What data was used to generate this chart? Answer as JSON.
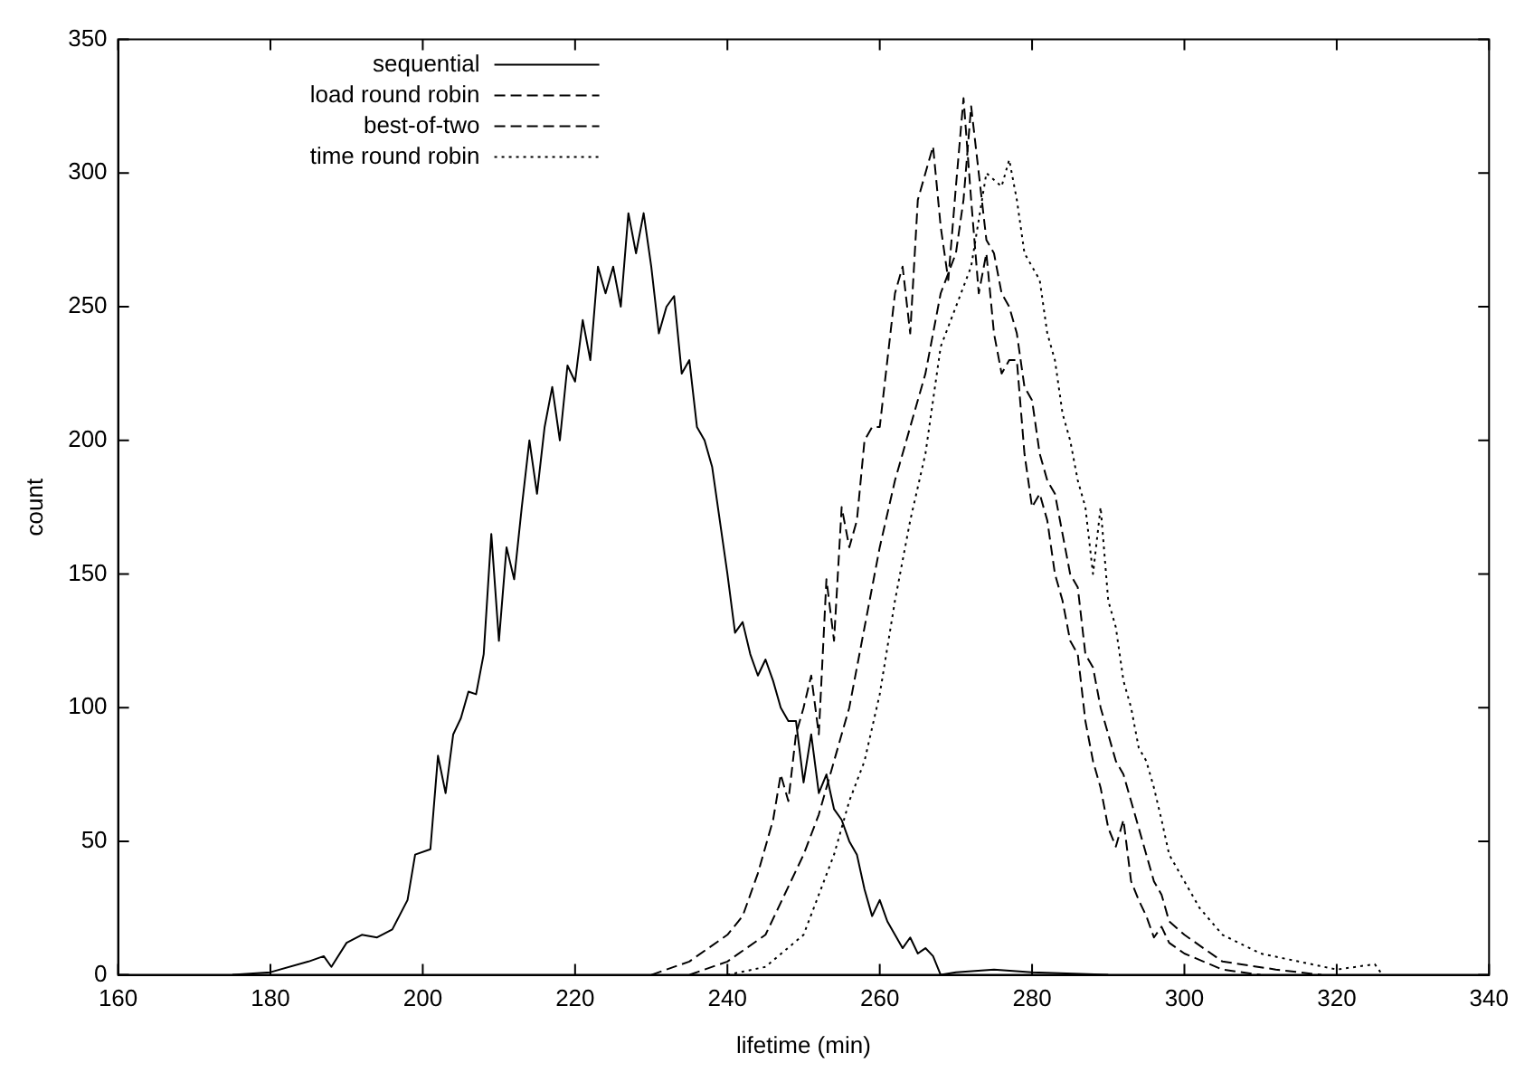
{
  "chart_data": {
    "type": "line",
    "xlabel": "lifetime (min)",
    "ylabel": "count",
    "xlim": [
      160,
      340
    ],
    "xticks": [
      160,
      180,
      200,
      220,
      240,
      260,
      280,
      300,
      320,
      340
    ],
    "ylim": [
      0,
      350
    ],
    "yticks": [
      0,
      50,
      100,
      150,
      200,
      250,
      300,
      350
    ],
    "grid": false,
    "legend": "top left",
    "marker": "none",
    "series": [
      {
        "name": "sequential",
        "color": "#000000",
        "line_style": "solid",
        "x": [
          175,
          180,
          185,
          187,
          188,
          190,
          192,
          194,
          196,
          198,
          199,
          201,
          202,
          203,
          204,
          205,
          206,
          207,
          208,
          209,
          210,
          211,
          212,
          213,
          214,
          215,
          216,
          217,
          218,
          219,
          220,
          221,
          222,
          223,
          224,
          225,
          226,
          227,
          228,
          229,
          230,
          231,
          232,
          233,
          234,
          235,
          236,
          237,
          238,
          239,
          240,
          241,
          242,
          243,
          244,
          245,
          246,
          247,
          248,
          249,
          250,
          251,
          252,
          253,
          254,
          255,
          256,
          257,
          258,
          259,
          260,
          261,
          262,
          263,
          264,
          265,
          266,
          267,
          268,
          270,
          275,
          280,
          290
        ],
        "values": [
          0,
          1,
          5,
          7,
          3,
          12,
          15,
          14,
          17,
          28,
          45,
          47,
          82,
          68,
          90,
          96,
          106,
          105,
          120,
          165,
          125,
          160,
          148,
          175,
          200,
          180,
          205,
          220,
          200,
          228,
          222,
          245,
          230,
          265,
          255,
          265,
          250,
          285,
          270,
          285,
          265,
          240,
          250,
          254,
          225,
          230,
          205,
          200,
          190,
          170,
          150,
          128,
          132,
          120,
          112,
          118,
          110,
          100,
          95,
          95,
          72,
          90,
          68,
          75,
          62,
          58,
          50,
          45,
          32,
          22,
          28,
          20,
          15,
          10,
          14,
          8,
          10,
          7,
          0,
          1,
          2,
          1,
          0
        ]
      },
      {
        "name": "load round robin",
        "color": "#000000",
        "line_style": "dashed",
        "x": [
          230,
          235,
          240,
          242,
          244,
          246,
          247,
          248,
          249,
          250,
          251,
          252,
          253,
          254,
          255,
          256,
          257,
          258,
          259,
          260,
          261,
          262,
          263,
          264,
          265,
          266,
          267,
          268,
          269,
          270,
          271,
          272,
          273,
          274,
          275,
          276,
          277,
          278,
          279,
          280,
          281,
          282,
          283,
          284,
          285,
          286,
          287,
          288,
          289,
          290,
          291,
          292,
          293,
          294,
          295,
          296,
          297,
          298,
          300,
          305,
          310
        ],
        "values": [
          0,
          5,
          15,
          22,
          38,
          58,
          75,
          65,
          90,
          100,
          112,
          90,
          148,
          125,
          175,
          160,
          170,
          200,
          205,
          205,
          230,
          255,
          265,
          240,
          290,
          300,
          310,
          280,
          260,
          295,
          328,
          290,
          255,
          270,
          240,
          225,
          230,
          230,
          195,
          175,
          180,
          170,
          150,
          140,
          125,
          120,
          95,
          80,
          70,
          55,
          48,
          58,
          35,
          28,
          22,
          14,
          18,
          12,
          8,
          2,
          0
        ]
      },
      {
        "name": "best-of-two",
        "color": "#000000",
        "line_style": "dashed",
        "x": [
          235,
          240,
          245,
          250,
          252,
          254,
          256,
          258,
          260,
          262,
          264,
          266,
          268,
          270,
          271,
          272,
          273,
          274,
          275,
          276,
          277,
          278,
          279,
          280,
          281,
          282,
          283,
          284,
          285,
          286,
          287,
          288,
          289,
          290,
          291,
          292,
          293,
          294,
          295,
          296,
          297,
          298,
          300,
          305,
          312,
          318
        ],
        "values": [
          0,
          5,
          15,
          45,
          60,
          80,
          100,
          130,
          160,
          185,
          205,
          225,
          255,
          270,
          290,
          325,
          300,
          275,
          270,
          255,
          250,
          240,
          220,
          215,
          195,
          185,
          180,
          165,
          150,
          145,
          120,
          115,
          100,
          90,
          80,
          75,
          65,
          55,
          45,
          35,
          30,
          20,
          15,
          5,
          2,
          0
        ]
      },
      {
        "name": "time round robin",
        "color": "#000000",
        "line_style": "dotted",
        "x": [
          240,
          245,
          250,
          252,
          254,
          256,
          258,
          260,
          262,
          264,
          266,
          268,
          270,
          272,
          274,
          276,
          277,
          278,
          279,
          280,
          281,
          282,
          283,
          284,
          285,
          286,
          287,
          288,
          289,
          290,
          291,
          292,
          293,
          294,
          295,
          296,
          297,
          298,
          300,
          302,
          305,
          310,
          315,
          320,
          325,
          326
        ],
        "values": [
          0,
          3,
          15,
          30,
          45,
          65,
          80,
          105,
          140,
          170,
          195,
          235,
          250,
          265,
          300,
          295,
          305,
          290,
          270,
          265,
          260,
          240,
          230,
          210,
          200,
          185,
          175,
          150,
          175,
          140,
          130,
          110,
          100,
          85,
          80,
          70,
          58,
          45,
          35,
          25,
          15,
          8,
          5,
          2,
          4,
          0
        ]
      }
    ]
  }
}
